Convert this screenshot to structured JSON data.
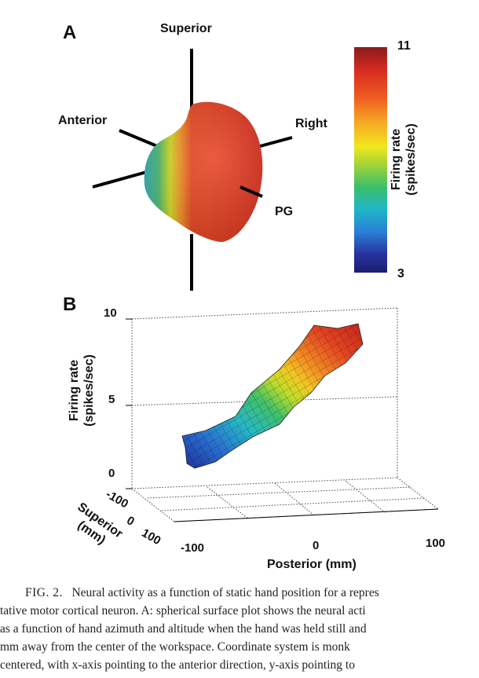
{
  "panel_a": {
    "letter": "A",
    "labels": {
      "superior": "Superior",
      "anterior": "Anterior",
      "right": "Right",
      "pg": "PG"
    },
    "colorbar": {
      "max": "11",
      "min": "3",
      "title_line1": "Firing rate",
      "title_line2": "(spikes/sec)",
      "colors": [
        "#8a1c1c",
        "#d62a20",
        "#ef5a22",
        "#f6a623",
        "#f2e61e",
        "#9bd23a",
        "#3bbf6a",
        "#1fb6c8",
        "#2a7fd6",
        "#28319e",
        "#1a1f6e"
      ]
    }
  },
  "panel_b": {
    "letter": "B",
    "z_ticks": [
      "10",
      "5",
      "0"
    ],
    "z_label_line1": "Firing rate",
    "z_label_line2": "(spikes/sec)",
    "y_ticks": [
      "-100",
      "0",
      "100"
    ],
    "y_label_line1": "Superior",
    "y_label_line2": "(mm)",
    "x_ticks": [
      "-100",
      "0",
      "100"
    ],
    "x_label": "Posterior (mm)"
  },
  "caption": {
    "fig_label": "FIG. 2.",
    "line1": "Neural activity as a function of static hand position for a repres",
    "line2": "tative motor cortical neuron. A: spherical surface plot shows the neural acti",
    "line3": "as a function of hand azimuth and altitude when the hand was held still and",
    "line4": "mm away from the center of the workspace. Coordinate system is monk",
    "line5": "centered, with x-axis pointing to the anterior direction, y-axis pointing to"
  }
}
